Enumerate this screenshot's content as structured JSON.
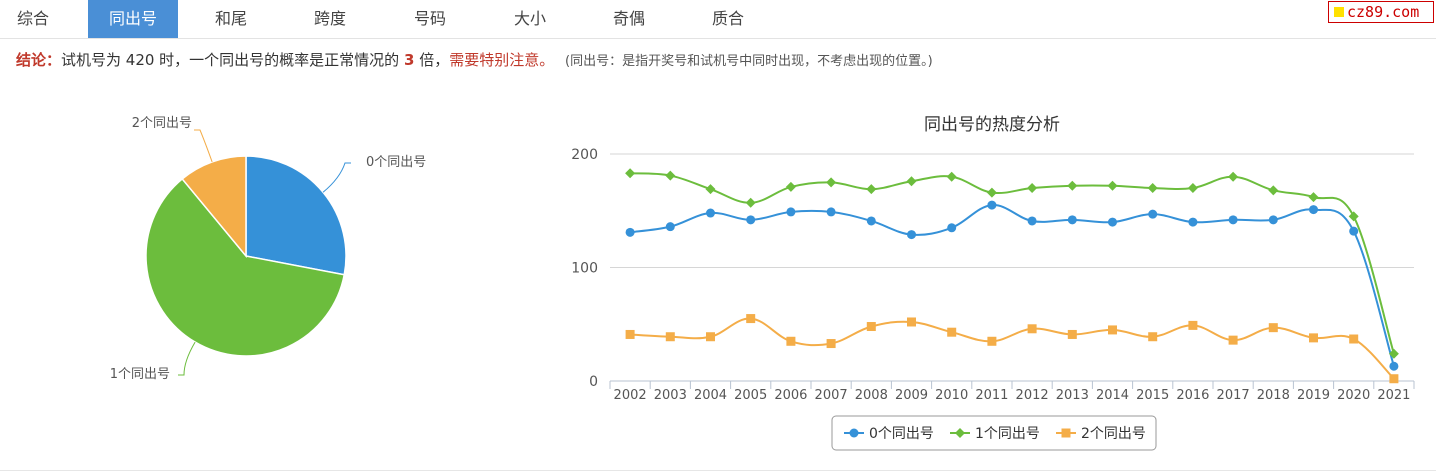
{
  "tabs": [
    "综合",
    "同出号",
    "和尾",
    "跨度",
    "号码",
    "大小",
    "奇偶",
    "质合"
  ],
  "active_tab": 1,
  "logo_text": "cz89.com",
  "conclusion": {
    "label": "结论：",
    "text1": "试机号为 420 时，一个同出号的概率是正常情况的",
    "multiple": "3",
    "text2": "倍，",
    "warning": "需要特别注意。",
    "note": "(同出号：是指开奖号和试机号中同时出现，不考虑出现的位置。)"
  },
  "colors": {
    "series0": "#3591d8",
    "series1": "#6cbd3d",
    "series2": "#f4ad48",
    "tab_active": "#4a8fd6",
    "emphasis": "#c0392b"
  },
  "chart_data": [
    {
      "type": "pie",
      "labels": [
        "0个同出号",
        "1个同出号",
        "2个同出号"
      ],
      "values": [
        28,
        61,
        11
      ]
    },
    {
      "type": "line",
      "title": "同出号的热度分析",
      "x": [
        "2002",
        "2003",
        "2004",
        "2005",
        "2006",
        "2007",
        "2008",
        "2009",
        "2010",
        "2011",
        "2012",
        "2013",
        "2014",
        "2015",
        "2016",
        "2017",
        "2018",
        "2019",
        "2020",
        "2021"
      ],
      "series": [
        {
          "name": "0个同出号",
          "marker": "circle",
          "values": [
            131,
            136,
            148,
            142,
            149,
            149,
            141,
            129,
            135,
            155,
            141,
            142,
            140,
            147,
            140,
            142,
            142,
            151,
            132,
            13
          ]
        },
        {
          "name": "1个同出号",
          "marker": "diamond",
          "values": [
            183,
            181,
            169,
            157,
            171,
            175,
            169,
            176,
            180,
            166,
            170,
            172,
            172,
            170,
            170,
            180,
            168,
            162,
            145,
            24
          ]
        },
        {
          "name": "2个同出号",
          "marker": "square",
          "values": [
            41,
            39,
            39,
            55,
            35,
            33,
            48,
            52,
            43,
            35,
            46,
            41,
            45,
            39,
            49,
            36,
            47,
            38,
            37,
            2
          ]
        }
      ],
      "yticks": [
        0,
        100,
        200
      ],
      "ylim": [
        0,
        200
      ],
      "legend": "bottom-center",
      "grid": true
    }
  ]
}
